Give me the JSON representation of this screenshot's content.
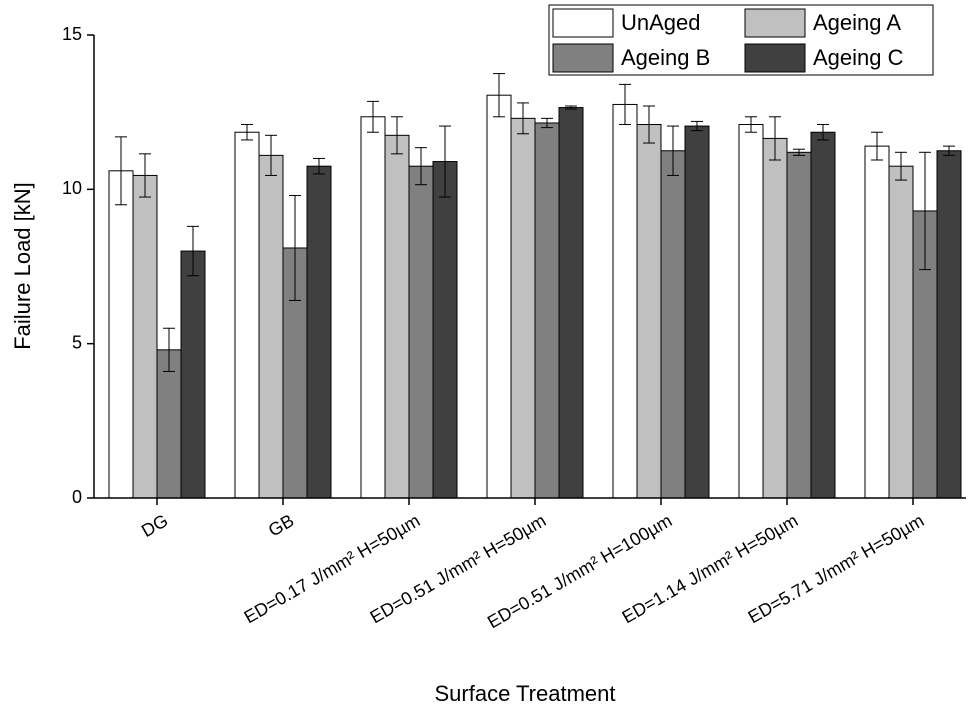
{
  "chart_data": {
    "type": "bar",
    "x_label": "Surface Treatment",
    "y_label": "Failure Load [kN]",
    "categories": [
      "DG",
      "GB",
      "ED=0.17 J/mm² H=50µm",
      "ED=0.51 J/mm² H=50µm",
      "ED=0.51 J/mm² H=100µm",
      "ED=1.14 J/mm² H=50µm",
      "ED=5.71 J/mm² H=50µm"
    ],
    "series": [
      {
        "name": "UnAged",
        "color": "#ffffff",
        "values": [
          10.6,
          11.85,
          12.35,
          13.05,
          12.75,
          12.1,
          11.4
        ],
        "errors": [
          1.1,
          0.25,
          0.5,
          0.7,
          0.65,
          0.25,
          0.45
        ]
      },
      {
        "name": "Ageing A",
        "color": "#c0c0c0",
        "values": [
          10.45,
          11.1,
          11.75,
          12.3,
          12.1,
          11.65,
          10.75
        ],
        "errors": [
          0.7,
          0.65,
          0.6,
          0.5,
          0.6,
          0.7,
          0.45
        ]
      },
      {
        "name": "Ageing B",
        "color": "#808080",
        "values": [
          4.8,
          8.1,
          10.75,
          12.15,
          11.25,
          11.2,
          9.3
        ],
        "errors": [
          0.7,
          1.7,
          0.6,
          0.15,
          0.8,
          0.1,
          1.9
        ]
      },
      {
        "name": "Ageing C",
        "color": "#404040",
        "values": [
          8.0,
          10.75,
          10.9,
          12.65,
          12.05,
          11.85,
          11.25
        ],
        "errors": [
          0.8,
          0.25,
          1.15,
          0.05,
          0.15,
          0.25,
          0.15
        ]
      }
    ],
    "ylim": [
      0,
      15
    ],
    "yticks": [
      0,
      5,
      10,
      15
    ],
    "legend": "top-right"
  }
}
